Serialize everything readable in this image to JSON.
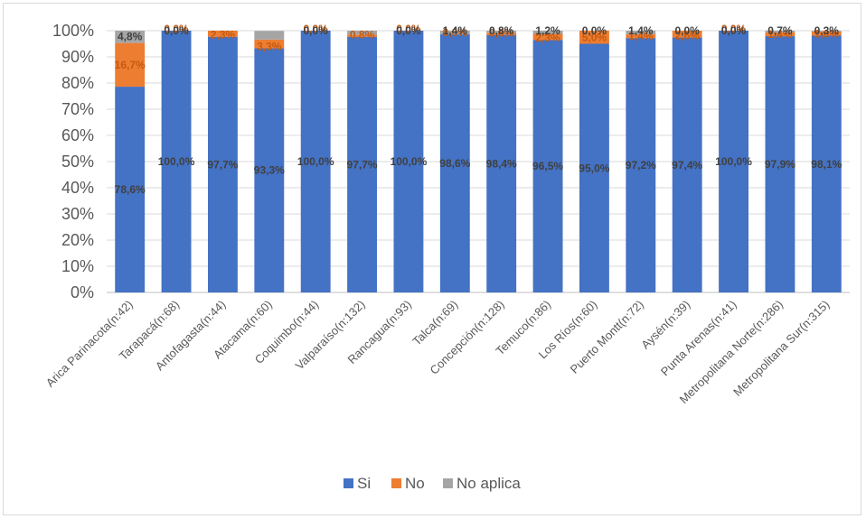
{
  "chart_data": {
    "type": "bar",
    "stacked": true,
    "title": "",
    "xlabel": "",
    "ylabel": "",
    "ylim": [
      0,
      100
    ],
    "y_ticks": [
      "0%",
      "10%",
      "20%",
      "30%",
      "40%",
      "50%",
      "60%",
      "70%",
      "80%",
      "90%",
      "100%"
    ],
    "grid": true,
    "legend_position": "bottom",
    "categories": [
      "Arica Parinacota(n:42)",
      "Tarapacá(n:68)",
      "Antofagasta(n:44)",
      "Atacama(n:60)",
      "Coquimbo(n:44)",
      "Valparaíso(n:132)",
      "Rancagua(n:93)",
      "Talca(n:69)",
      "Concepción(n:128)",
      "Temuco(n:86)",
      "Los Ríos(n:60)",
      "Puerto Montt(n:72)",
      "Aysén(n:39)",
      "Punta Arenas(n:41)",
      "Metropolitana Norte(n:286)",
      "Metropolitana Sur(n:315)"
    ],
    "series": [
      {
        "name": "Si",
        "color": "#4472c4",
        "values": [
          78.6,
          100.0,
          97.7,
          93.3,
          100.0,
          97.7,
          100.0,
          98.6,
          98.4,
          96.5,
          95.0,
          97.2,
          97.4,
          100.0,
          97.9,
          98.1
        ],
        "labels": [
          "78,6%",
          "100,0%",
          "97,7%",
          "93,3%",
          "100,0%",
          "97,7%",
          "100,0%",
          "98,6%",
          "98,4%",
          "96,5%",
          "95,0%",
          "97,2%",
          "97,4%",
          "100,0%",
          "97,9%",
          "98,1%"
        ]
      },
      {
        "name": "No",
        "color": "#ed7d31",
        "values": [
          16.7,
          0.0,
          2.3,
          3.3,
          0.0,
          0.8,
          0.0,
          0.0,
          0.8,
          2.3,
          5.0,
          1.4,
          2.6,
          0.0,
          1.4,
          1.6
        ],
        "labels": [
          "16,7%",
          "0,0%",
          "2,3%",
          "3,3%",
          "0,0%",
          "0,8%",
          "0,0%",
          "0,0%",
          "0,8%",
          "2,3%",
          "5,0%",
          "1,4%",
          "2,6%",
          "0,0%",
          "1,4%",
          "1,6%"
        ]
      },
      {
        "name": "No aplica",
        "color": "#a5a5a5",
        "values": [
          4.8,
          0.0,
          0.0,
          3.3,
          0.0,
          1.5,
          0.0,
          1.4,
          0.8,
          1.2,
          0.0,
          1.4,
          0.0,
          0.0,
          0.7,
          0.3
        ],
        "labels": [
          "4,8%",
          "0,0%",
          "",
          "",
          "0,0%",
          "",
          "0,0%",
          "1,4%",
          "0,8%",
          "1,2%",
          "0,0%",
          "1,4%",
          "0,0%",
          "0,0%",
          "0,7%",
          "0,3%"
        ]
      }
    ]
  }
}
